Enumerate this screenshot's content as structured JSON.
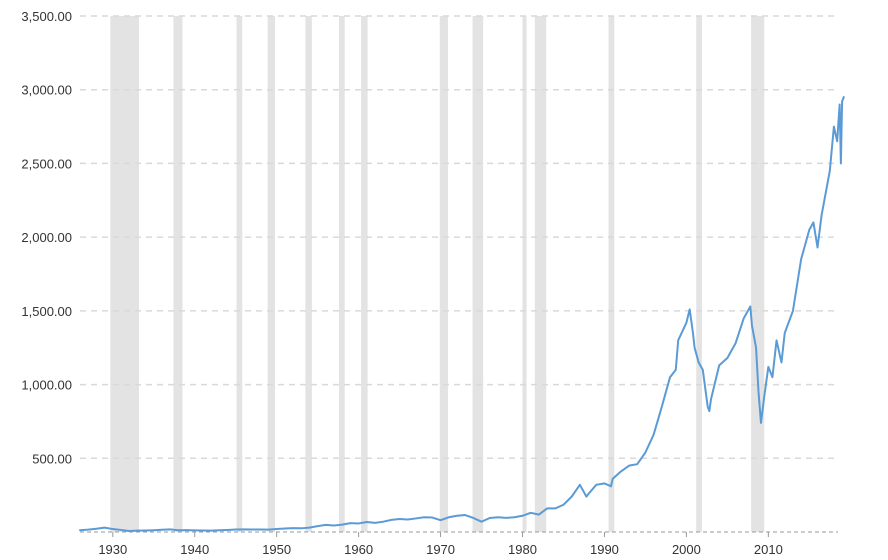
{
  "chart_data": {
    "type": "line",
    "title": "",
    "xlabel": "",
    "ylabel": "",
    "xlim": [
      1926,
      2018.5
    ],
    "ylim": [
      0,
      3500
    ],
    "x_ticks": [
      1930,
      1940,
      1950,
      1960,
      1970,
      1980,
      1990,
      2000,
      2010
    ],
    "x_tick_labels": [
      "1930",
      "1940",
      "1950",
      "1960",
      "1970",
      "1980",
      "1990",
      "2000",
      "2010"
    ],
    "y_ticks": [
      500,
      1000,
      1500,
      2000,
      2500,
      3000,
      3500
    ],
    "y_tick_labels": [
      "500.00",
      "1,000.00",
      "1,500.00",
      "2,000.00",
      "2,500.00",
      "3,000.00",
      "3,500.00"
    ],
    "grid": "horizontal dashed",
    "recession_bands": [
      [
        1929.7,
        1933.2
      ],
      [
        1937.4,
        1938.5
      ],
      [
        1945.1,
        1945.8
      ],
      [
        1948.9,
        1949.8
      ],
      [
        1953.5,
        1954.3
      ],
      [
        1957.6,
        1958.3
      ],
      [
        1960.3,
        1961.1
      ],
      [
        1969.9,
        1970.9
      ],
      [
        1973.9,
        1975.2
      ],
      [
        1980.0,
        1980.5
      ],
      [
        1981.5,
        1982.9
      ],
      [
        1990.5,
        1991.2
      ],
      [
        2001.2,
        2001.9
      ],
      [
        2007.9,
        2009.5
      ]
    ],
    "series": [
      {
        "color": "#5b9bd5",
        "points": [
          [
            1926,
            12
          ],
          [
            1927,
            16
          ],
          [
            1928,
            22
          ],
          [
            1929,
            30
          ],
          [
            1930,
            20
          ],
          [
            1931,
            14
          ],
          [
            1932,
            7
          ],
          [
            1933,
            9
          ],
          [
            1934,
            10
          ],
          [
            1935,
            12
          ],
          [
            1936,
            15
          ],
          [
            1937,
            18
          ],
          [
            1938,
            12
          ],
          [
            1939,
            13
          ],
          [
            1940,
            11
          ],
          [
            1941,
            10
          ],
          [
            1942,
            9
          ],
          [
            1943,
            12
          ],
          [
            1944,
            14
          ],
          [
            1945,
            17
          ],
          [
            1946,
            18
          ],
          [
            1947,
            17
          ],
          [
            1948,
            17
          ],
          [
            1949,
            16
          ],
          [
            1950,
            20
          ],
          [
            1951,
            24
          ],
          [
            1952,
            26
          ],
          [
            1953,
            25
          ],
          [
            1954,
            30
          ],
          [
            1955,
            40
          ],
          [
            1956,
            48
          ],
          [
            1957,
            44
          ],
          [
            1958,
            50
          ],
          [
            1959,
            60
          ],
          [
            1960,
            58
          ],
          [
            1961,
            68
          ],
          [
            1962,
            62
          ],
          [
            1963,
            70
          ],
          [
            1964,
            82
          ],
          [
            1965,
            88
          ],
          [
            1966,
            85
          ],
          [
            1967,
            92
          ],
          [
            1968,
            100
          ],
          [
            1969,
            98
          ],
          [
            1970,
            80
          ],
          [
            1971,
            100
          ],
          [
            1972,
            110
          ],
          [
            1973,
            115
          ],
          [
            1974,
            95
          ],
          [
            1975,
            70
          ],
          [
            1976,
            95
          ],
          [
            1977,
            100
          ],
          [
            1978,
            96
          ],
          [
            1979,
            100
          ],
          [
            1980,
            110
          ],
          [
            1981,
            130
          ],
          [
            1982,
            118
          ],
          [
            1983,
            160
          ],
          [
            1984,
            160
          ],
          [
            1985,
            185
          ],
          [
            1986,
            240
          ],
          [
            1987,
            320
          ],
          [
            1987.8,
            240
          ],
          [
            1988,
            255
          ],
          [
            1989,
            320
          ],
          [
            1990,
            330
          ],
          [
            1990.8,
            310
          ],
          [
            1991,
            360
          ],
          [
            1992,
            410
          ],
          [
            1993,
            450
          ],
          [
            1994,
            460
          ],
          [
            1995,
            540
          ],
          [
            1996,
            660
          ],
          [
            1997,
            850
          ],
          [
            1998,
            1050
          ],
          [
            1998.7,
            1100
          ],
          [
            1999,
            1300
          ],
          [
            2000,
            1420
          ],
          [
            2000.4,
            1510
          ],
          [
            2000.8,
            1350
          ],
          [
            2001,
            1250
          ],
          [
            2001.5,
            1150
          ],
          [
            2002,
            1100
          ],
          [
            2002.6,
            850
          ],
          [
            2002.8,
            820
          ],
          [
            2003,
            900
          ],
          [
            2004,
            1130
          ],
          [
            2005,
            1180
          ],
          [
            2006,
            1280
          ],
          [
            2007,
            1450
          ],
          [
            2007.8,
            1530
          ],
          [
            2008,
            1400
          ],
          [
            2008.5,
            1250
          ],
          [
            2008.8,
            950
          ],
          [
            2009.1,
            740
          ],
          [
            2009.5,
            920
          ],
          [
            2010,
            1120
          ],
          [
            2010.5,
            1050
          ],
          [
            2011,
            1300
          ],
          [
            2011.6,
            1150
          ],
          [
            2012,
            1350
          ],
          [
            2013,
            1500
          ],
          [
            2014,
            1850
          ],
          [
            2015,
            2050
          ],
          [
            2015.5,
            2100
          ],
          [
            2016,
            1930
          ],
          [
            2016.5,
            2150
          ],
          [
            2017,
            2300
          ],
          [
            2017.5,
            2450
          ],
          [
            2018,
            2750
          ],
          [
            2018.4,
            2650
          ],
          [
            2018.7,
            2900
          ],
          [
            2018.85,
            2500
          ],
          [
            2019,
            2920
          ],
          [
            2019.2,
            2950
          ]
        ]
      }
    ]
  }
}
